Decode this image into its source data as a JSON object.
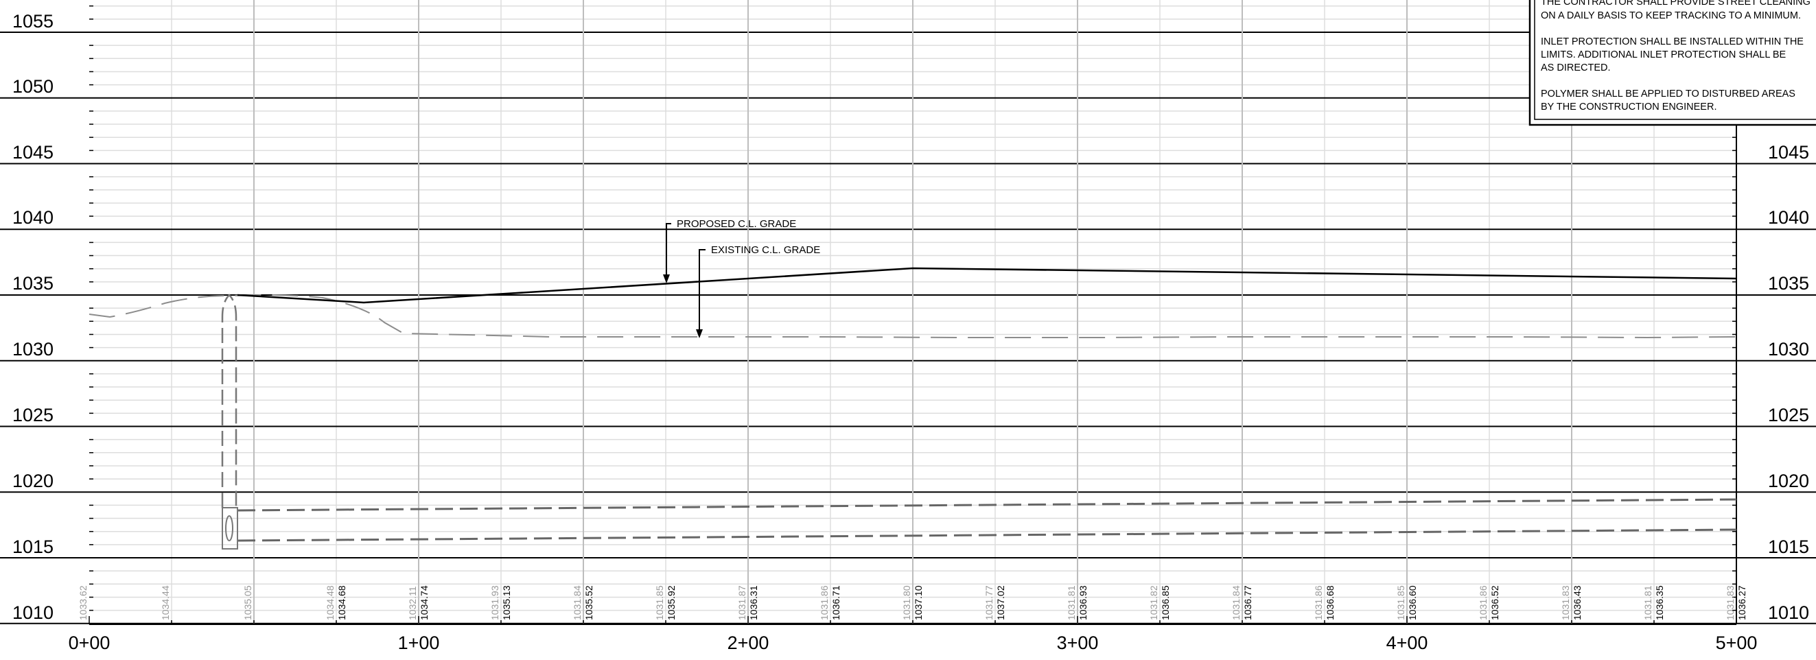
{
  "sheet": {
    "elevation_labels_left": [
      "1055",
      "1050",
      "1045",
      "1040",
      "1035",
      "1030",
      "1025",
      "1020",
      "1015",
      "1010"
    ],
    "elevation_labels_right": [
      "1045",
      "1040",
      "1035",
      "1030",
      "1025",
      "1020",
      "1015",
      "1010"
    ],
    "station_labels": [
      "0+00",
      "1+00",
      "2+00",
      "3+00",
      "4+00",
      "5+00"
    ],
    "notes": [
      "THE CONTRACTOR SHALL PROVIDE STREET CLEANING",
      "ON A DAILY BASIS TO KEEP TRACKING TO A MINIMUM.",
      "",
      "INLET PROTECTION SHALL BE INSTALLED WITHIN THE",
      "LIMITS.  ADDITIONAL INLET PROTECTION SHALL BE",
      "AS DIRECTED.",
      "",
      "POLYMER SHALL BE APPLIED TO DISTURBED AREAS",
      "BY THE CONSTRUCTION ENGINEER."
    ],
    "callout_proposed": "PROPOSED C.L. GRADE",
    "callout_existing": "EXISTING C.L. GRADE",
    "existing_grade_elevations": [
      "1033.62",
      "1034.44",
      "1035.05",
      "1034.48",
      "1032.11",
      "1031.93",
      "1031.84",
      "1031.85",
      "1031.87",
      "1031.86",
      "1031.80",
      "1031.77",
      "1031.81",
      "1031.82",
      "1031.84",
      "1031.86",
      "1031.85",
      "1031.86",
      "1031.83",
      "1031.81",
      "1031.83"
    ],
    "proposed_grade_elevations": [
      "",
      "",
      "",
      "1034.68",
      "1034.74",
      "1035.13",
      "1035.52",
      "1035.92",
      "1036.31",
      "1036.71",
      "1037.10",
      "1037.02",
      "1036.93",
      "1036.85",
      "1036.77",
      "1036.68",
      "1036.60",
      "1036.52",
      "1036.43",
      "1036.35",
      "1036.27"
    ]
  },
  "colors": {
    "grid_major": "#bdbdbd",
    "grid_minor": "#dddddd",
    "proposed_line": "#000000",
    "existing_line": "#8c8c8c",
    "pipe": "#666666"
  }
}
